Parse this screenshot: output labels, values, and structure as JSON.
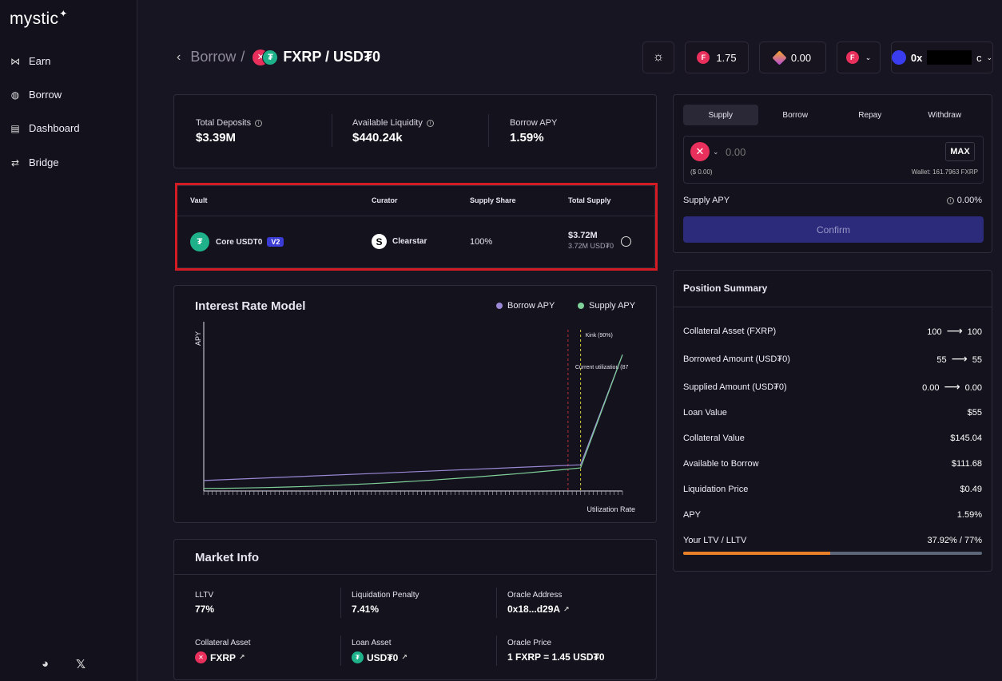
{
  "sidebar": {
    "logo": "mystic",
    "items": [
      {
        "label": "Earn",
        "icon": "butterfly-icon"
      },
      {
        "label": "Borrow",
        "icon": "coin-icon"
      },
      {
        "label": "Dashboard",
        "icon": "dashboard-icon"
      },
      {
        "label": "Bridge",
        "icon": "bridge-icon"
      }
    ]
  },
  "header": {
    "breadcrumb_parent": "Borrow",
    "breadcrumb_sep": "/",
    "title": "FXRP / USD₮0",
    "flr_value": "1.75",
    "gem_value": "0.00",
    "wallet_prefix": "0x",
    "wallet_suffix": "c"
  },
  "stats": [
    {
      "label": "Total Deposits",
      "value": "$3.39M"
    },
    {
      "label": "Available Liquidity",
      "value": "$440.24k"
    },
    {
      "label": "Borrow APY",
      "value": "1.59%"
    }
  ],
  "vault_table": {
    "headers": [
      "Vault",
      "Curator",
      "Supply Share",
      "Total Supply"
    ],
    "row": {
      "vault": "Core USDT0",
      "badge": "V2",
      "curator": "Clearstar",
      "share": "100%",
      "total_usd": "$3.72M",
      "total_token": "3.72M USD₮0"
    }
  },
  "chart": {
    "title": "Interest Rate Model",
    "legend_borrow": "Borrow APY",
    "legend_supply": "Supply APY",
    "ylabel": "APY",
    "xlabel": "Utilization Rate",
    "kink_label": "Kink (90%)",
    "current_label": "Current utilization (87",
    "colors": {
      "borrow": "#9a88d6",
      "supply": "#7fd19a",
      "kink": "#d6c93a",
      "current": "#c0303a"
    }
  },
  "chart_data": {
    "type": "line",
    "title": "Interest Rate Model",
    "xlabel": "Utilization Rate",
    "ylabel": "APY",
    "xlim": [
      0,
      100
    ],
    "series": [
      {
        "name": "Borrow APY",
        "x": [
          0,
          90,
          100
        ],
        "y": [
          2,
          5,
          26
        ]
      },
      {
        "name": "Supply APY",
        "x": [
          0,
          30,
          60,
          90,
          100
        ],
        "y": [
          0.5,
          1.2,
          2.5,
          4.4,
          26
        ]
      }
    ],
    "annotations": [
      {
        "x": 90,
        "label": "Kink (90%)"
      },
      {
        "x": 87,
        "label": "Current utilization (87"
      }
    ],
    "legend_position": "top-right"
  },
  "market": {
    "title": "Market Info",
    "lltv_label": "LLTV",
    "lltv": "77%",
    "penalty_label": "Liquidation Penalty",
    "penalty": "7.41%",
    "oracle_label": "Oracle Address",
    "oracle": "0x18...d29A",
    "collateral_label": "Collateral Asset",
    "collateral": "FXRP",
    "loan_label": "Loan Asset",
    "loan": "USD₮0",
    "price_label": "Oracle Price",
    "price": "1 FXRP = 1.45 USD₮0"
  },
  "action": {
    "tabs": [
      "Supply",
      "Borrow",
      "Repay",
      "Withdraw"
    ],
    "amount_placeholder": "0.00",
    "usd_value": "($ 0.00)",
    "wallet": "Wallet: 161.7963 FXRP",
    "max": "MAX",
    "apy_label": "Supply APY",
    "apy_value": "0.00%",
    "confirm": "Confirm"
  },
  "position": {
    "title": "Position Summary",
    "rows": [
      {
        "label": "Collateral Asset (FXRP)",
        "from": "100",
        "to": "100"
      },
      {
        "label": "Borrowed Amount (USD₮0)",
        "from": "55",
        "to": "55"
      },
      {
        "label": "Supplied Amount (USD₮0)",
        "from": "0.00",
        "to": "0.00"
      }
    ],
    "simple": [
      {
        "label": "Loan Value",
        "value": "$55"
      },
      {
        "label": "Collateral Value",
        "value": "$145.04"
      },
      {
        "label": "Available to Borrow",
        "value": "$111.68"
      },
      {
        "label": "Liquidation Price",
        "value": "$0.49"
      },
      {
        "label": "APY",
        "value": "1.59%"
      },
      {
        "label": "Your LTV / LLTV",
        "value": "37.92% / 77%"
      }
    ],
    "ltv_fraction": 0.4925
  }
}
